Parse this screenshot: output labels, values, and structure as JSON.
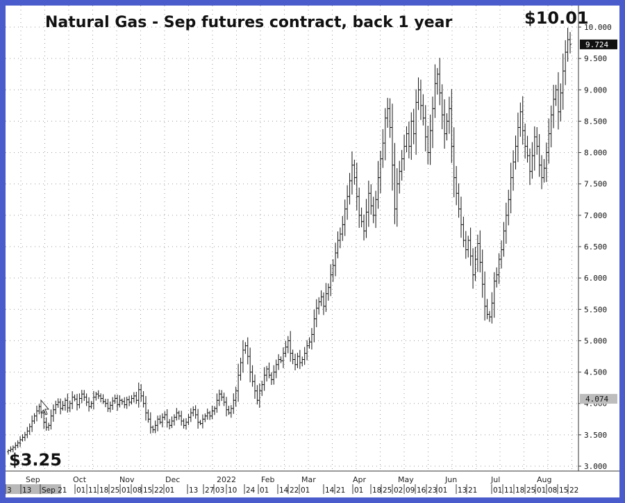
{
  "chart_data": {
    "type": "bar",
    "subtype": "ohlc",
    "title": "Natural Gas - Sep futures contract, back 1 year",
    "y_ticks": [
      "3.000",
      "3.500",
      "4.000",
      "4.500",
      "5.000",
      "5.500",
      "6.000",
      "6.500",
      "7.000",
      "7.500",
      "8.000",
      "8.500",
      "9.000",
      "9.500",
      "10.000"
    ],
    "ylim": [
      2.75,
      10.15
    ],
    "grid": true,
    "annotations": {
      "start_price": "$3.25",
      "end_price": "$10.01",
      "last_price_tag": "9.724",
      "highlight_tag": "4.074"
    },
    "highlight_value": 4.074,
    "last_value": 9.724,
    "month_labels": [
      "Sep",
      "Oct",
      "Nov",
      "Dec",
      "2022",
      "Feb",
      "Mar",
      "Apr",
      "May",
      "Jun",
      "Jul",
      "Aug"
    ],
    "date_labels": [
      "3",
      "13",
      "Sep 21",
      "01",
      "11",
      "18",
      "25",
      "01",
      "08",
      "15",
      "22",
      "01",
      "13",
      "27",
      "03",
      "10",
      "24",
      "01",
      "14",
      "22",
      "01",
      "14",
      "21",
      "01",
      "18",
      "25",
      "02",
      "09",
      "16",
      "23",
      "01",
      "13",
      "21",
      "01",
      "11",
      "18",
      "25",
      "01",
      "08",
      "15",
      "22"
    ],
    "close": [
      3.25,
      3.27,
      3.3,
      3.33,
      3.37,
      3.42,
      3.46,
      3.5,
      3.56,
      3.63,
      3.72,
      3.8,
      3.88,
      3.95,
      3.85,
      3.7,
      3.62,
      3.65,
      3.8,
      3.9,
      3.98,
      4.02,
      3.92,
      3.97,
      4.05,
      3.93,
      4.0,
      4.1,
      4.07,
      3.98,
      4.08,
      4.15,
      4.1,
      4.02,
      3.95,
      4.0,
      4.1,
      4.15,
      4.12,
      4.08,
      4.03,
      4.0,
      3.92,
      3.97,
      4.04,
      4.08,
      3.98,
      4.05,
      4.03,
      3.98,
      4.06,
      4.02,
      4.08,
      4.12,
      4.05,
      4.22,
      4.12,
      4.0,
      3.85,
      3.75,
      3.62,
      3.58,
      3.65,
      3.75,
      3.7,
      3.78,
      3.82,
      3.7,
      3.65,
      3.72,
      3.78,
      3.85,
      3.8,
      3.72,
      3.65,
      3.7,
      3.78,
      3.85,
      3.9,
      3.82,
      3.7,
      3.68,
      3.75,
      3.8,
      3.85,
      3.8,
      3.88,
      3.92,
      4.05,
      4.15,
      4.1,
      4.02,
      3.9,
      3.85,
      3.92,
      4.05,
      4.2,
      4.45,
      4.65,
      4.85,
      4.92,
      4.75,
      4.5,
      4.35,
      4.2,
      4.05,
      4.2,
      4.3,
      4.45,
      4.55,
      4.45,
      4.38,
      4.5,
      4.62,
      4.7,
      4.68,
      4.8,
      4.9,
      5.0,
      4.8,
      4.7,
      4.62,
      4.75,
      4.65,
      4.7,
      4.8,
      4.92,
      4.98,
      5.1,
      5.35,
      5.52,
      5.62,
      5.7,
      5.55,
      5.75,
      5.85,
      6.05,
      6.2,
      6.4,
      6.6,
      6.7,
      6.85,
      7.1,
      7.3,
      7.55,
      7.8,
      7.6,
      7.3,
      7.0,
      6.9,
      6.75,
      7.05,
      7.35,
      7.15,
      7.0,
      7.25,
      7.6,
      7.9,
      8.15,
      8.55,
      8.7,
      8.4,
      7.8,
      7.1,
      7.5,
      7.7,
      7.9,
      8.1,
      8.3,
      8.1,
      8.5,
      8.3,
      8.8,
      9.0,
      8.75,
      8.55,
      8.25,
      8.0,
      8.35,
      8.7,
      9.1,
      9.25,
      8.95,
      8.6,
      8.3,
      8.5,
      8.7,
      8.1,
      7.6,
      7.35,
      7.1,
      6.85,
      6.6,
      6.45,
      6.6,
      6.35,
      6.05,
      6.3,
      6.55,
      6.25,
      5.9,
      5.55,
      5.42,
      5.38,
      5.6,
      5.95,
      6.05,
      6.3,
      6.45,
      6.75,
      7.0,
      7.25,
      7.6,
      7.85,
      8.1,
      8.4,
      8.65,
      8.35,
      8.1,
      7.95,
      7.7,
      7.95,
      8.25,
      8.1,
      7.8,
      7.6,
      7.75,
      8.0,
      8.3,
      8.6,
      8.85,
      9.0,
      8.65,
      8.95,
      9.3,
      9.6,
      9.8,
      9.724
    ]
  }
}
